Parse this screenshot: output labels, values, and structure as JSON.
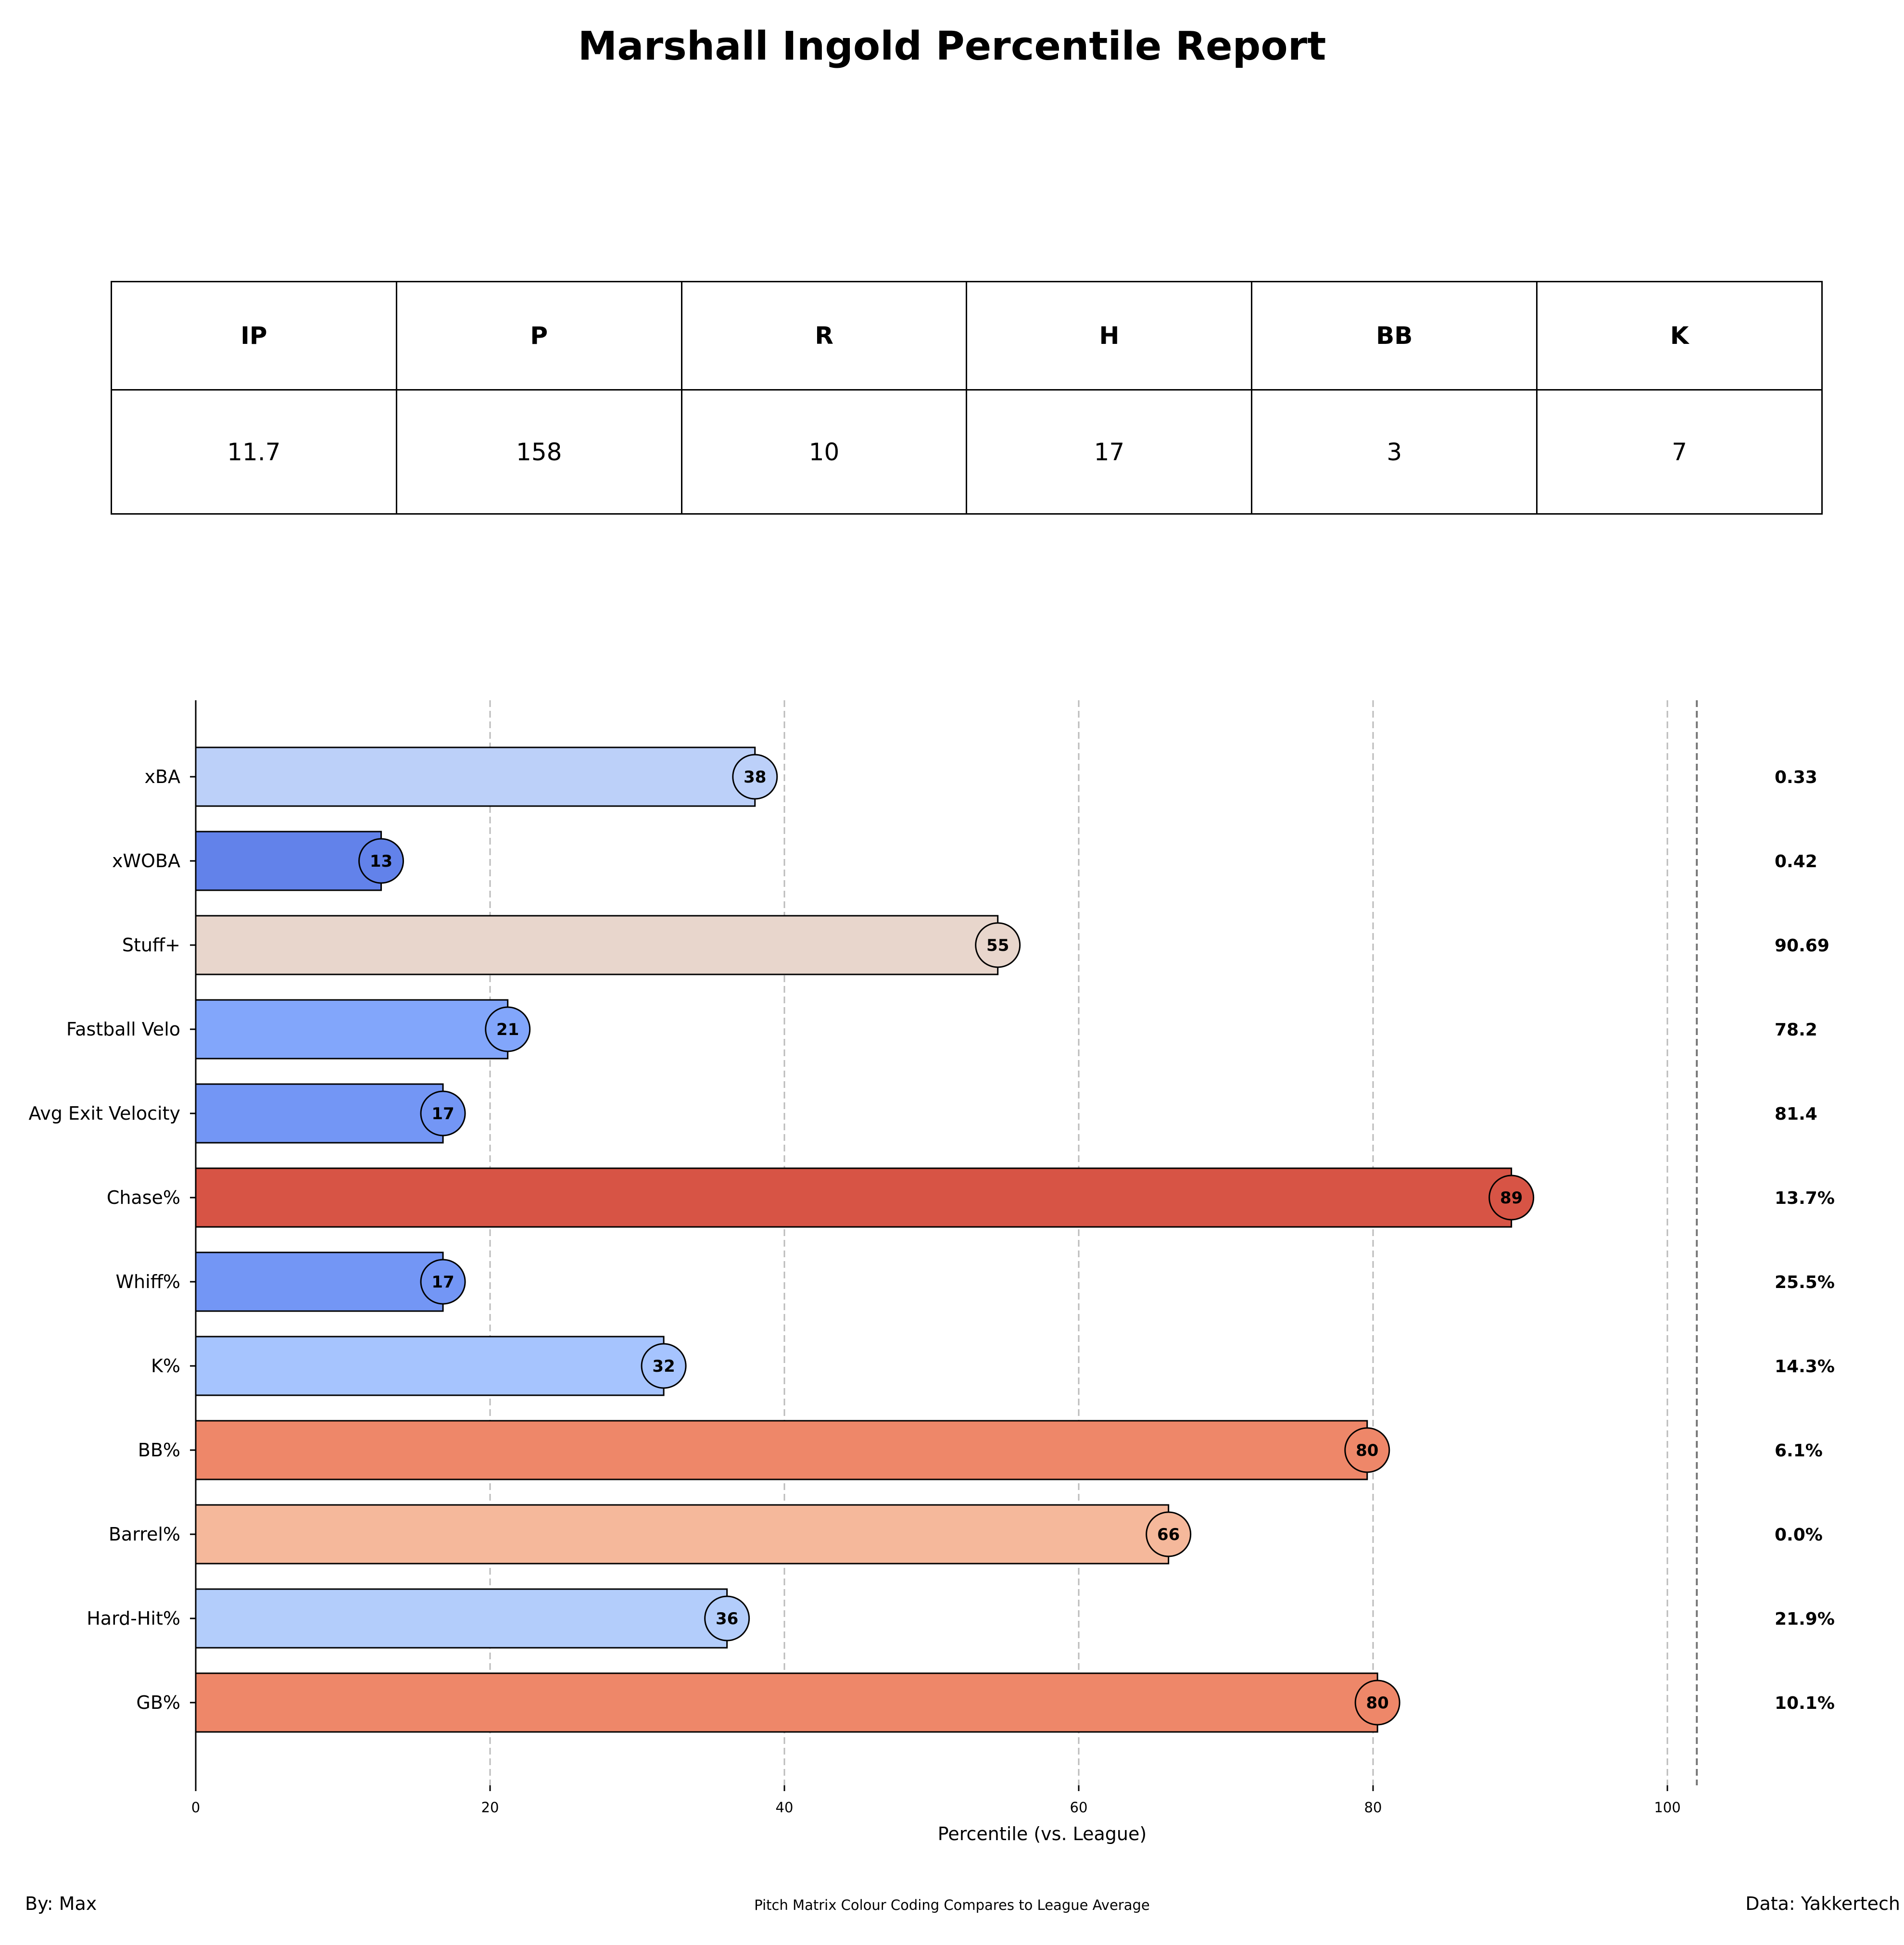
{
  "title": "Marshall Ingold Percentile Report",
  "stats_table": {
    "headers": [
      "IP",
      "P",
      "R",
      "H",
      "BB",
      "K"
    ],
    "values": [
      "11.7",
      "158",
      "10",
      "17",
      "3",
      "7"
    ]
  },
  "chart_data": {
    "type": "bar",
    "orientation": "horizontal",
    "title": "",
    "xlabel": "Percentile (vs. League)",
    "ylabel": "",
    "xlim": [
      0,
      102
    ],
    "xticks": [
      0,
      20,
      40,
      60,
      80,
      100
    ],
    "grid": "vertical dashed",
    "categories": [
      "xBA",
      "xWOBA",
      "Stuff+",
      "Fastball Velo",
      "Avg Exit Velocity",
      "Chase%",
      "Whiff%",
      "K%",
      "BB%",
      "Barrel%",
      "Hard-Hit%",
      "GB%"
    ],
    "values": [
      38,
      12.6,
      54.5,
      21.2,
      16.8,
      89.4,
      16.8,
      31.8,
      79.6,
      66.1,
      36.1,
      80.3
    ],
    "value_labels": [
      "38",
      "13",
      "55",
      "21",
      "17",
      "89",
      "17",
      "32",
      "80",
      "66",
      "36",
      "80"
    ],
    "stat_values": [
      "0.33",
      "0.42",
      "90.69",
      "78.2",
      "81.4",
      "13.7%",
      "25.5%",
      "14.3%",
      "6.1%",
      "0.0%",
      "21.9%",
      "10.1%"
    ],
    "bar_colors": [
      "#bcd0f9",
      "#6282ea",
      "#e8d6cc",
      "#82a6fb",
      "#7396f5",
      "#d75445",
      "#7396f5",
      "#a6c4fe",
      "#ee8769",
      "#f5b89b",
      "#b3cdfb",
      "#ee8769"
    ]
  },
  "footer": {
    "left": "By: Max",
    "center": "Pitch Matrix Colour Coding Compares to League Average",
    "right": "Data: Yakkertech"
  }
}
